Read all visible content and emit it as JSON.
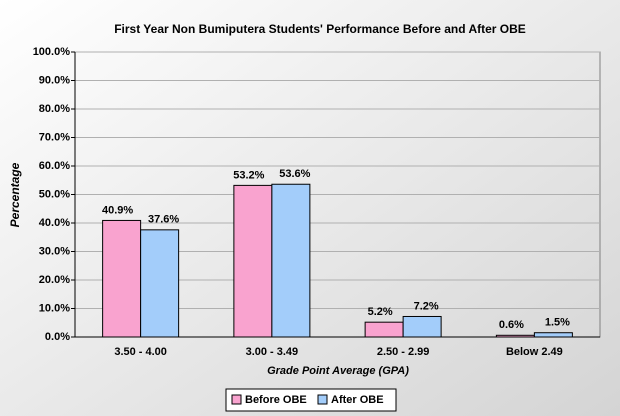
{
  "chart_data": {
    "type": "bar",
    "title": "First Year Non Bumiputera Students' Performance Before and After OBE",
    "x_label": "Grade Point Average (GPA)",
    "y_label": "Percentage",
    "categories": [
      "3.50 - 4.00",
      "3.00 - 3.49",
      "2.50 - 2.99",
      "Below 2.49"
    ],
    "series": [
      {
        "name": "Before OBE",
        "color": "#f9a3cf",
        "values": [
          40.9,
          53.2,
          5.2,
          0.6
        ],
        "value_labels": [
          "40.9%",
          "53.2%",
          "5.2%",
          "0.6%"
        ]
      },
      {
        "name": "After OBE",
        "color": "#a3cdfa",
        "values": [
          37.6,
          53.6,
          7.2,
          1.5
        ],
        "value_labels": [
          "37.6%",
          "53.6%",
          "7.2%",
          "1.5%"
        ]
      }
    ],
    "ylim": [
      0,
      100
    ],
    "yticks": [
      {
        "value": 0,
        "label": "0.0%"
      },
      {
        "value": 10,
        "label": "10.0%"
      },
      {
        "value": 20,
        "label": "20.0%"
      },
      {
        "value": 30,
        "label": "30.0%"
      },
      {
        "value": 40,
        "label": "40.0%"
      },
      {
        "value": 50,
        "label": "50.0%"
      },
      {
        "value": 60,
        "label": "60.0%"
      },
      {
        "value": 70,
        "label": "70.0%"
      },
      {
        "value": 80,
        "label": "80.0%"
      },
      {
        "value": 90,
        "label": "90.0%"
      },
      {
        "value": 100,
        "label": "100.0%"
      }
    ],
    "grid": true,
    "legend": "bottom"
  }
}
